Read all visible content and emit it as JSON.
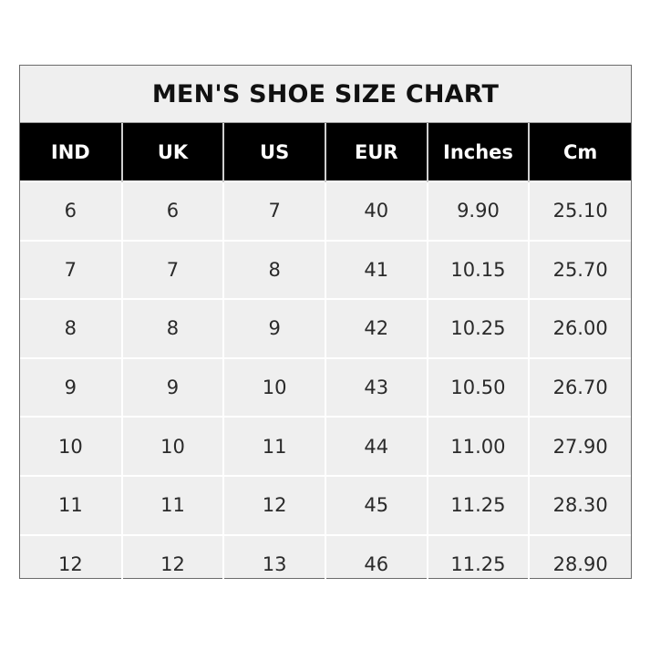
{
  "chart_data": {
    "type": "table",
    "title": "MEN'S SHOE SIZE CHART",
    "columns": [
      "IND",
      "UK",
      "US",
      "EUR",
      "Inches",
      "Cm"
    ],
    "rows": [
      [
        "6",
        "6",
        "7",
        "40",
        "9.90",
        "25.10"
      ],
      [
        "7",
        "7",
        "8",
        "41",
        "10.15",
        "25.70"
      ],
      [
        "8",
        "8",
        "9",
        "42",
        "10.25",
        "26.00"
      ],
      [
        "9",
        "9",
        "10",
        "43",
        "10.50",
        "26.70"
      ],
      [
        "10",
        "10",
        "11",
        "44",
        "11.00",
        "27.90"
      ],
      [
        "11",
        "11",
        "12",
        "45",
        "11.25",
        "28.30"
      ],
      [
        "12",
        "12",
        "13",
        "46",
        "11.25",
        "28.90"
      ]
    ],
    "colors": {
      "header_bg": "#000000",
      "header_text": "#ffffff",
      "body_bg": "#efefef",
      "grid": "#ffffff"
    }
  }
}
